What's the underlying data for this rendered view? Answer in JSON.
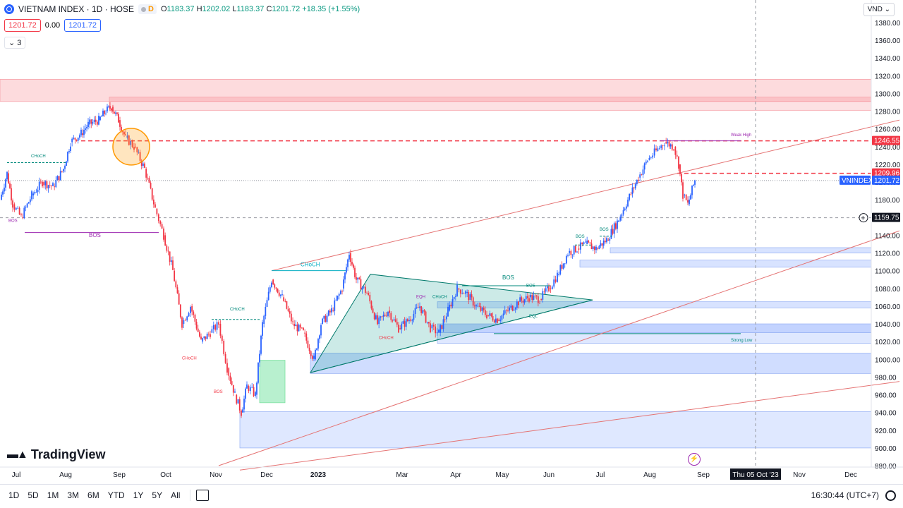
{
  "header": {
    "symbol_title": "VIETNAM INDEX · 1D · HOSE",
    "d_tag": "D",
    "ohlc": {
      "o_label": "O",
      "o": "1183.37",
      "h_label": "H",
      "h": "1202.02",
      "l_label": "L",
      "l": "1183.37",
      "c_label": "C",
      "c": "1201.72",
      "chg": "+18.35 (+1.55%)"
    },
    "bid": "1201.72",
    "spread": "0.00",
    "ask": "1201.72",
    "indicator_count": "3",
    "currency": "VND"
  },
  "price_axis": {
    "ticks": [
      1380,
      1360,
      1340,
      1320,
      1300,
      1280,
      1260,
      1240,
      1220,
      1200,
      1180,
      1160,
      1140,
      1120,
      1100,
      1080,
      1060,
      1040,
      1020,
      1000,
      980,
      960,
      940,
      920,
      900,
      880
    ],
    "tags": [
      {
        "text": "1246.55",
        "value": 1246.55,
        "color": "#f23645"
      },
      {
        "text": "1209.96",
        "value": 1209.96,
        "color": "#f23645"
      },
      {
        "text": "VNINDEX",
        "value": 1201.72,
        "color": "#2962ff",
        "kind": "label"
      },
      {
        "text": "1201.72",
        "value": 1201.72,
        "color": "#2962ff"
      },
      {
        "text": "1159.75",
        "value": 1159.75,
        "color": "#131722"
      }
    ]
  },
  "time_axis": {
    "labels": [
      {
        "text": "Jul",
        "bold": false
      },
      {
        "text": "Aug",
        "bold": false
      },
      {
        "text": "Sep",
        "bold": false
      },
      {
        "text": "Oct",
        "bold": false
      },
      {
        "text": "Nov",
        "bold": false
      },
      {
        "text": "Dec",
        "bold": false
      },
      {
        "text": "2023",
        "bold": true
      },
      {
        "text": "Mar",
        "bold": false
      },
      {
        "text": "Apr",
        "bold": false
      },
      {
        "text": "May",
        "bold": false
      },
      {
        "text": "Jun",
        "bold": false
      },
      {
        "text": "Jul",
        "bold": false
      },
      {
        "text": "Aug",
        "bold": false
      },
      {
        "text": "Sep",
        "bold": false
      },
      {
        "text": "Nov",
        "bold": false
      },
      {
        "text": "Dec",
        "bold": false
      }
    ],
    "crosshair_date": "Thu 05 Oct '23"
  },
  "annotations": {
    "bos_labels": [
      "BOS",
      "BOS",
      "BOS",
      "BOS",
      "BOS",
      "BOS",
      "BOS"
    ],
    "choch_labels": [
      "CHoCH",
      "CHoCH",
      "CHoCH",
      "CHoCH",
      "CHoCH",
      "CHoCH"
    ],
    "eqh": "EQH",
    "eql": "EQL",
    "weak_high": "Weak High",
    "strong_low": "Strong Low"
  },
  "chart_data": {
    "type": "line",
    "title": "VIETNAM INDEX · 1D · HOSE",
    "ylabel": "VND",
    "ylim": [
      875,
      1390
    ],
    "series": [
      {
        "name": "VNINDEX close (approx.)",
        "points": [
          [
            0,
            1180
          ],
          [
            10,
            1210
          ],
          [
            18,
            1175
          ],
          [
            30,
            1160
          ],
          [
            45,
            1185
          ],
          [
            60,
            1200
          ],
          [
            75,
            1195
          ],
          [
            90,
            1215
          ],
          [
            100,
            1245
          ],
          [
            115,
            1255
          ],
          [
            125,
            1265
          ],
          [
            140,
            1270
          ],
          [
            150,
            1280
          ],
          [
            158,
            1285
          ],
          [
            168,
            1270
          ],
          [
            178,
            1250
          ],
          [
            190,
            1240
          ],
          [
            205,
            1215
          ],
          [
            220,
            1170
          ],
          [
            232,
            1140
          ],
          [
            245,
            1100
          ],
          [
            258,
            1040
          ],
          [
            270,
            1060
          ],
          [
            285,
            1020
          ],
          [
            298,
            1030
          ],
          [
            310,
            1040
          ],
          [
            322,
            990
          ],
          [
            333,
            960
          ],
          [
            342,
            940
          ],
          [
            350,
            970
          ],
          [
            362,
            960
          ],
          [
            372,
            1040
          ],
          [
            385,
            1090
          ],
          [
            400,
            1070
          ],
          [
            415,
            1040
          ],
          [
            430,
            1030
          ],
          [
            445,
            1000
          ],
          [
            455,
            1040
          ],
          [
            470,
            1055
          ],
          [
            485,
            1080
          ],
          [
            495,
            1120
          ],
          [
            505,
            1090
          ],
          [
            520,
            1075
          ],
          [
            535,
            1040
          ],
          [
            550,
            1055
          ],
          [
            565,
            1035
          ],
          [
            580,
            1045
          ],
          [
            595,
            1060
          ],
          [
            610,
            1035
          ],
          [
            622,
            1030
          ],
          [
            635,
            1055
          ],
          [
            648,
            1080
          ],
          [
            660,
            1075
          ],
          [
            675,
            1060
          ],
          [
            690,
            1050
          ],
          [
            705,
            1045
          ],
          [
            720,
            1055
          ],
          [
            735,
            1065
          ],
          [
            750,
            1070
          ],
          [
            765,
            1068
          ],
          [
            778,
            1080
          ],
          [
            790,
            1095
          ],
          [
            805,
            1120
          ],
          [
            818,
            1125
          ],
          [
            830,
            1130
          ],
          [
            845,
            1125
          ],
          [
            860,
            1135
          ],
          [
            875,
            1155
          ],
          [
            890,
            1180
          ],
          [
            905,
            1205
          ],
          [
            918,
            1225
          ],
          [
            930,
            1235
          ],
          [
            942,
            1245
          ],
          [
            955,
            1240
          ],
          [
            962,
            1220
          ],
          [
            968,
            1185
          ],
          [
            975,
            1175
          ],
          [
            985,
            1202
          ]
        ]
      }
    ]
  }
}
